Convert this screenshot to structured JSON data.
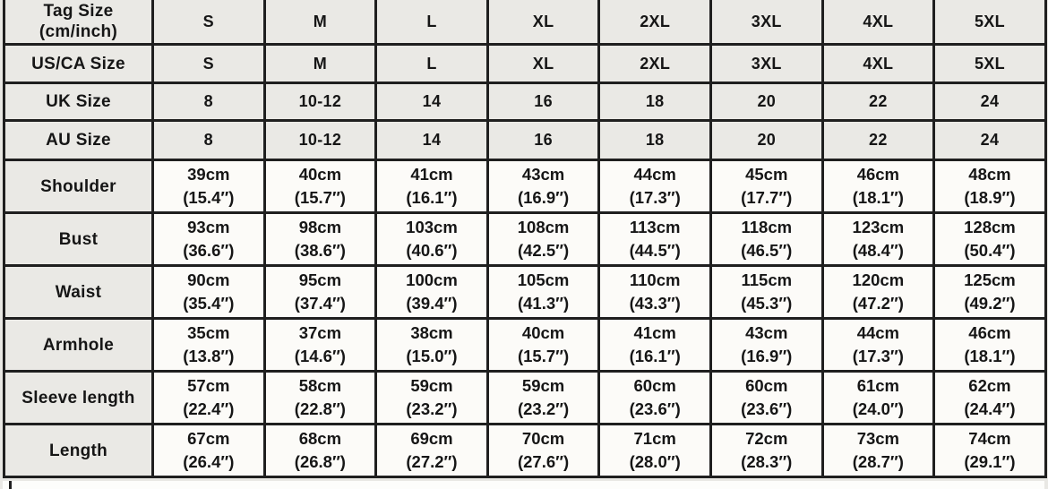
{
  "chart_data": {
    "type": "table",
    "columns": [
      "Tag Size (cm/inch)",
      "S",
      "M",
      "L",
      "XL",
      "2XL",
      "3XL",
      "4XL",
      "5XL"
    ],
    "rows": [
      {
        "header": true,
        "label": [
          "Tag Size",
          "(cm/inch)"
        ],
        "cells": [
          [
            "S"
          ],
          [
            "M"
          ],
          [
            "L"
          ],
          [
            "XL"
          ],
          [
            "2XL"
          ],
          [
            "3XL"
          ],
          [
            "4XL"
          ],
          [
            "5XL"
          ]
        ]
      },
      {
        "header": true,
        "label": [
          "US/CA Size"
        ],
        "cells": [
          [
            "S"
          ],
          [
            "M"
          ],
          [
            "L"
          ],
          [
            "XL"
          ],
          [
            "2XL"
          ],
          [
            "3XL"
          ],
          [
            "4XL"
          ],
          [
            "5XL"
          ]
        ]
      },
      {
        "header": true,
        "label": [
          "UK Size"
        ],
        "cells": [
          [
            "8"
          ],
          [
            "10-12"
          ],
          [
            "14"
          ],
          [
            "16"
          ],
          [
            "18"
          ],
          [
            "20"
          ],
          [
            "22"
          ],
          [
            "24"
          ]
        ]
      },
      {
        "header": true,
        "label": [
          "AU Size"
        ],
        "cells": [
          [
            "8"
          ],
          [
            "10-12"
          ],
          [
            "14"
          ],
          [
            "16"
          ],
          [
            "18"
          ],
          [
            "20"
          ],
          [
            "22"
          ],
          [
            "24"
          ]
        ]
      },
      {
        "header": false,
        "label": [
          "Shoulder"
        ],
        "cells": [
          [
            "39cm",
            "(15.4″)"
          ],
          [
            "40cm",
            "(15.7″)"
          ],
          [
            "41cm",
            "(16.1″)"
          ],
          [
            "43cm",
            "(16.9″)"
          ],
          [
            "44cm",
            "(17.3″)"
          ],
          [
            "45cm",
            "(17.7″)"
          ],
          [
            "46cm",
            "(18.1″)"
          ],
          [
            "48cm",
            "(18.9″)"
          ]
        ]
      },
      {
        "header": false,
        "label": [
          "Bust"
        ],
        "cells": [
          [
            "93cm",
            "(36.6″)"
          ],
          [
            "98cm",
            "(38.6″)"
          ],
          [
            "103cm",
            "(40.6″)"
          ],
          [
            "108cm",
            "(42.5″)"
          ],
          [
            "113cm",
            "(44.5″)"
          ],
          [
            "118cm",
            "(46.5″)"
          ],
          [
            "123cm",
            "(48.4″)"
          ],
          [
            "128cm",
            "(50.4″)"
          ]
        ]
      },
      {
        "header": false,
        "label": [
          "Waist"
        ],
        "cells": [
          [
            "90cm",
            "(35.4″)"
          ],
          [
            "95cm",
            "(37.4″)"
          ],
          [
            "100cm",
            "(39.4″)"
          ],
          [
            "105cm",
            "(41.3″)"
          ],
          [
            "110cm",
            "(43.3″)"
          ],
          [
            "115cm",
            "(45.3″)"
          ],
          [
            "120cm",
            "(47.2″)"
          ],
          [
            "125cm",
            "(49.2″)"
          ]
        ]
      },
      {
        "header": false,
        "label": [
          "Armhole"
        ],
        "cells": [
          [
            "35cm",
            "(13.8″)"
          ],
          [
            "37cm",
            "(14.6″)"
          ],
          [
            "38cm",
            "(15.0″)"
          ],
          [
            "40cm",
            "(15.7″)"
          ],
          [
            "41cm",
            "(16.1″)"
          ],
          [
            "43cm",
            "(16.9″)"
          ],
          [
            "44cm",
            "(17.3″)"
          ],
          [
            "46cm",
            "(18.1″)"
          ]
        ]
      },
      {
        "header": false,
        "label": [
          "Sleeve length"
        ],
        "cells": [
          [
            "57cm",
            "(22.4″)"
          ],
          [
            "58cm",
            "(22.8″)"
          ],
          [
            "59cm",
            "(23.2″)"
          ],
          [
            "59cm",
            "(23.2″)"
          ],
          [
            "60cm",
            "(23.6″)"
          ],
          [
            "60cm",
            "(23.6″)"
          ],
          [
            "61cm",
            "(24.0″)"
          ],
          [
            "62cm",
            "(24.4″)"
          ]
        ]
      },
      {
        "header": false,
        "label": [
          "Length"
        ],
        "cells": [
          [
            "67cm",
            "(26.4″)"
          ],
          [
            "68cm",
            "(26.8″)"
          ],
          [
            "69cm",
            "(27.2″)"
          ],
          [
            "70cm",
            "(27.6″)"
          ],
          [
            "71cm",
            "(28.0″)"
          ],
          [
            "72cm",
            "(28.3″)"
          ],
          [
            "73cm",
            "(28.7″)"
          ],
          [
            "74cm",
            "(29.1″)"
          ]
        ]
      }
    ],
    "colors": {
      "grid": "#1f1f1f",
      "header_bg": "#eae9e5",
      "cell_bg": "#fcfbf8",
      "text": "#161616"
    }
  }
}
